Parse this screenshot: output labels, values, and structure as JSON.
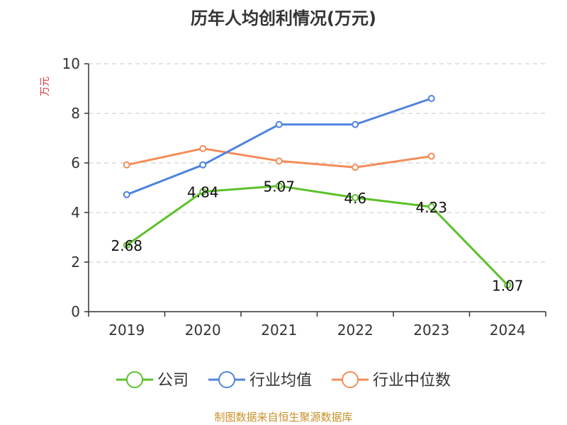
{
  "chart_data": {
    "type": "line",
    "title": "历年人均创利情况(万元)",
    "ylabel": "万元",
    "xlabel": "",
    "categories": [
      "2019",
      "2020",
      "2021",
      "2022",
      "2023",
      "2024"
    ],
    "ylim": [
      0,
      10
    ],
    "yticks": [
      0,
      2,
      4,
      6,
      8,
      10
    ],
    "grid": true,
    "legend_position": "bottom",
    "series": [
      {
        "name": "公司",
        "color": "#5cc02a",
        "values": [
          2.68,
          4.84,
          5.07,
          4.6,
          4.23,
          1.07
        ],
        "labels": [
          "2.68",
          "4.84",
          "5.07",
          "4.6",
          "4.23",
          "1.07"
        ]
      },
      {
        "name": "行业均值",
        "color": "#4f83dd",
        "values": [
          4.72,
          5.92,
          7.55,
          7.55,
          8.6,
          null
        ]
      },
      {
        "name": "行业中位数",
        "color": "#f48c5a",
        "values": [
          5.92,
          6.58,
          6.08,
          5.82,
          6.27,
          null
        ]
      }
    ]
  },
  "source": "制图数据来自恒生聚源数据库"
}
